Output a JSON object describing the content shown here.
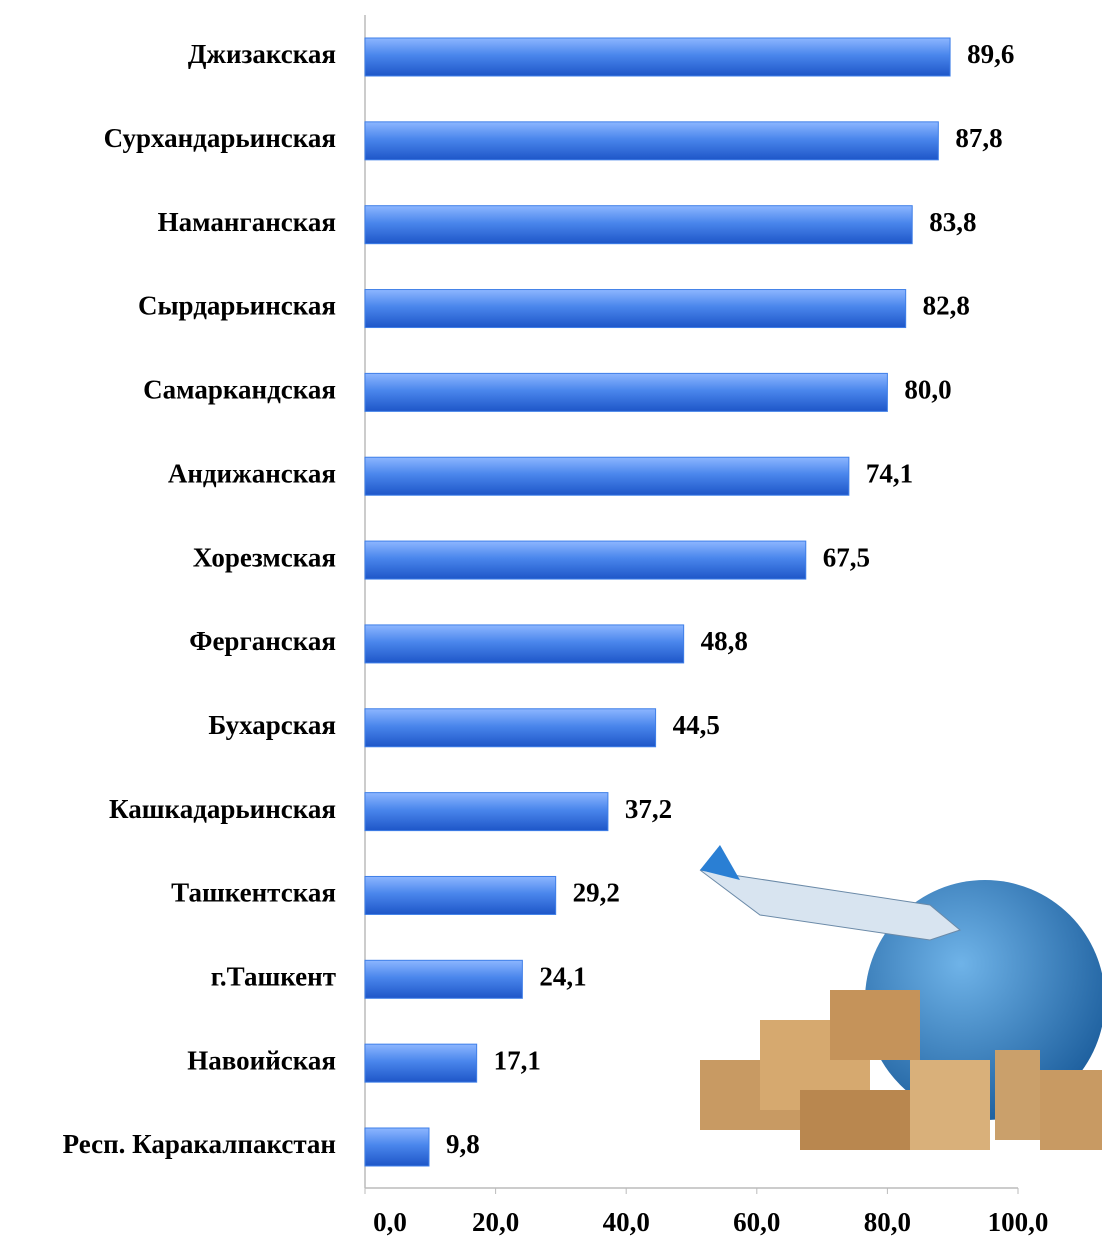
{
  "chart_data": {
    "type": "barh",
    "categories": [
      "Джизакская",
      "Сурхандарьинская",
      "Наманганская",
      "Сырдарьинская",
      "Самаркандская",
      "Андижанская",
      "Хорезмская",
      "Ферганская",
      "Бухарская",
      "Кашкадарьинская",
      "Ташкентская",
      "г.Ташкент",
      "Навоийская",
      "Респ. Каракалпакстан"
    ],
    "values": [
      89.6,
      87.8,
      83.8,
      82.8,
      80.0,
      74.1,
      67.5,
      48.8,
      44.5,
      37.2,
      29.2,
      24.1,
      17.1,
      9.8
    ],
    "value_labels": [
      "89,6",
      "87,8",
      "83,8",
      "82,8",
      "80,0",
      "74,1",
      "67,5",
      "48,8",
      "44,5",
      "37,2",
      "29,2",
      "24,1",
      "17,1",
      "9,8"
    ],
    "color": "#3f7fe8",
    "xlim": [
      0,
      100
    ],
    "xticks": [
      {
        "value": 0,
        "label": "0,0"
      },
      {
        "value": 20,
        "label": "20,0"
      },
      {
        "value": 40,
        "label": "40,0"
      },
      {
        "value": 60,
        "label": "60,0"
      },
      {
        "value": 80,
        "label": "80,0"
      },
      {
        "value": 100,
        "label": "100,0"
      }
    ]
  }
}
